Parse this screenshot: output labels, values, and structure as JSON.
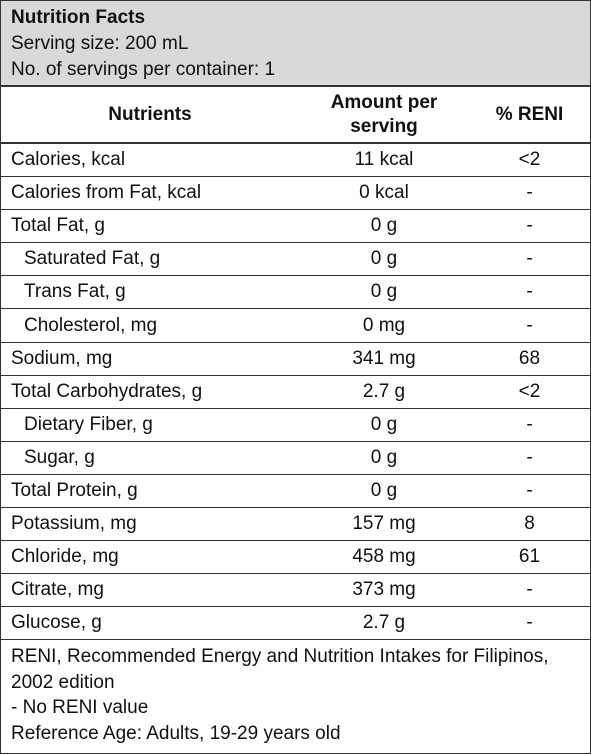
{
  "header": {
    "title": "Nutrition Facts",
    "lines": [
      "Serving size: 200 mL",
      "No. of servings per container: 1"
    ]
  },
  "table": {
    "columns": [
      "Nutrients",
      "Amount per serving",
      "% RENI"
    ],
    "rows": [
      {
        "nutrient": "Calories, kcal",
        "amount": "11 kcal",
        "reni": "<2"
      },
      {
        "nutrient": "Calories from Fat, kcal",
        "amount": "0 kcal",
        "reni": "-"
      },
      {
        "nutrient": "Total Fat, g",
        "amount": "0 g",
        "reni": "-"
      },
      {
        "nutrient": "Saturated Fat, g",
        "amount": "0 g",
        "reni": "-",
        "indent": true
      },
      {
        "nutrient": "Trans Fat, g",
        "amount": "0 g",
        "reni": "-",
        "indent": true
      },
      {
        "nutrient": "Cholesterol, mg",
        "amount": "0 mg",
        "reni": "-",
        "indent": true
      },
      {
        "nutrient": "Sodium, mg",
        "amount": "341 mg",
        "reni": "68"
      },
      {
        "nutrient": "Total Carbohydrates, g",
        "amount": "2.7 g",
        "reni": "<2"
      },
      {
        "nutrient": "Dietary Fiber, g",
        "amount": "0 g",
        "reni": "-",
        "indent": true
      },
      {
        "nutrient": "Sugar, g",
        "amount": "0 g",
        "reni": "-",
        "indent": true
      },
      {
        "nutrient": "Total Protein, g",
        "amount": "0 g",
        "reni": "-"
      },
      {
        "nutrient": "Potassium, mg",
        "amount": "157 mg",
        "reni": "8"
      },
      {
        "nutrient": "Chloride, mg",
        "amount": "458 mg",
        "reni": "61"
      },
      {
        "nutrient": "Citrate, mg",
        "amount": "373 mg",
        "reni": "-"
      },
      {
        "nutrient": "Glucose, g",
        "amount": "2.7 g",
        "reni": "-"
      }
    ]
  },
  "footer": {
    "lines": [
      "RENI, Recommended Energy and Nutrition Intakes for Filipinos, 2002 edition",
      "- No RENI value",
      "Reference Age: Adults, 19-29 years old"
    ]
  }
}
